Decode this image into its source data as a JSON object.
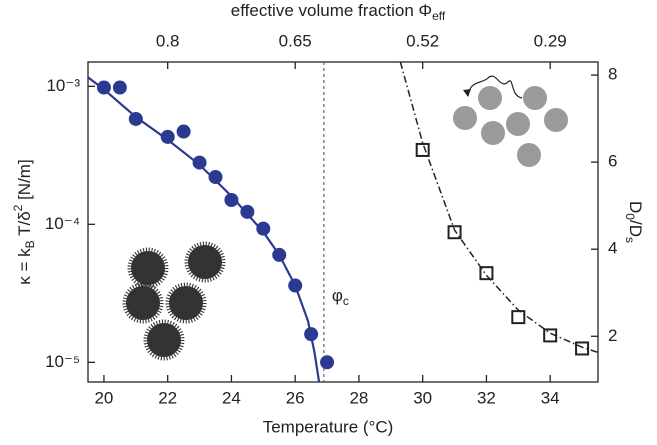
{
  "chart_data": {
    "type": "scatter",
    "x_label": "Temperature (°C)",
    "x2_label": {
      "text": "effective volume fraction Φ",
      "subscript": "eff"
    },
    "y_label": [
      "κ = k",
      "B",
      " T/δ",
      "2",
      " [N/m]"
    ],
    "y2_label": [
      "D",
      "0",
      "/D",
      "s"
    ],
    "xlim": [
      19.5,
      35.5
    ],
    "xticks": [
      20,
      22,
      24,
      26,
      28,
      30,
      32,
      34
    ],
    "x2ticks": [
      {
        "value": 22,
        "label": "0.8"
      },
      {
        "value": 26,
        "label": "0.65"
      },
      {
        "value": 30,
        "label": "0.52"
      },
      {
        "value": 34,
        "label": "0.29"
      }
    ],
    "ylim": [
      7.2e-06,
      0.0015
    ],
    "ylog": true,
    "yticks": [
      {
        "value": 0.001,
        "label": "10⁻³"
      },
      {
        "value": 0.0001,
        "label": "10⁻⁴"
      },
      {
        "value": 1e-05,
        "label": "10⁻⁵"
      }
    ],
    "y2lim": [
      0.95,
      8.3
    ],
    "y2ticks": [
      2,
      4,
      6,
      8
    ],
    "vline": 26.9,
    "annotation": {
      "symbol": "φ",
      "subscript": "c"
    },
    "series": [
      {
        "mode": "markers",
        "marker": "circle",
        "color": "#2b3990",
        "x": [
          20,
          20.5,
          21,
          22,
          22.5,
          23,
          23.5,
          24,
          24.5,
          25,
          25.5,
          26,
          26.5,
          27
        ],
        "values": [
          0.00098,
          0.00098,
          0.00058,
          0.00043,
          0.00047,
          0.00028,
          0.00022,
          0.00015,
          0.000123,
          9.3e-05,
          6e-05,
          3.6e-05,
          1.6e-05,
          1e-05
        ]
      },
      {
        "mode": "line",
        "color": "#2b3990",
        "x": [
          19.5,
          20,
          21,
          22,
          23,
          24,
          25,
          25.5,
          26,
          26.4,
          26.6,
          26.75
        ],
        "values": [
          0.00116,
          0.00095,
          0.0006,
          0.00041,
          0.00027,
          0.00016,
          8.8e-05,
          6e-05,
          3.6e-05,
          2e-05,
          1.2e-05,
          7.2e-06
        ]
      },
      {
        "mode": "markers",
        "marker": "square",
        "axis": "y2",
        "color": "#222222",
        "x": [
          30,
          31,
          32,
          33,
          34,
          35
        ],
        "values": [
          6.28,
          4.39,
          3.45,
          2.44,
          2.02,
          1.72
        ]
      },
      {
        "mode": "line",
        "dash": "dashdot",
        "axis": "y2",
        "color": "#222222",
        "x": [
          29.3,
          30,
          31,
          32,
          33,
          34,
          35,
          35.5
        ],
        "values": [
          8.3,
          6.44,
          4.44,
          3.4,
          2.6,
          2.07,
          1.75,
          1.63
        ]
      }
    ]
  }
}
